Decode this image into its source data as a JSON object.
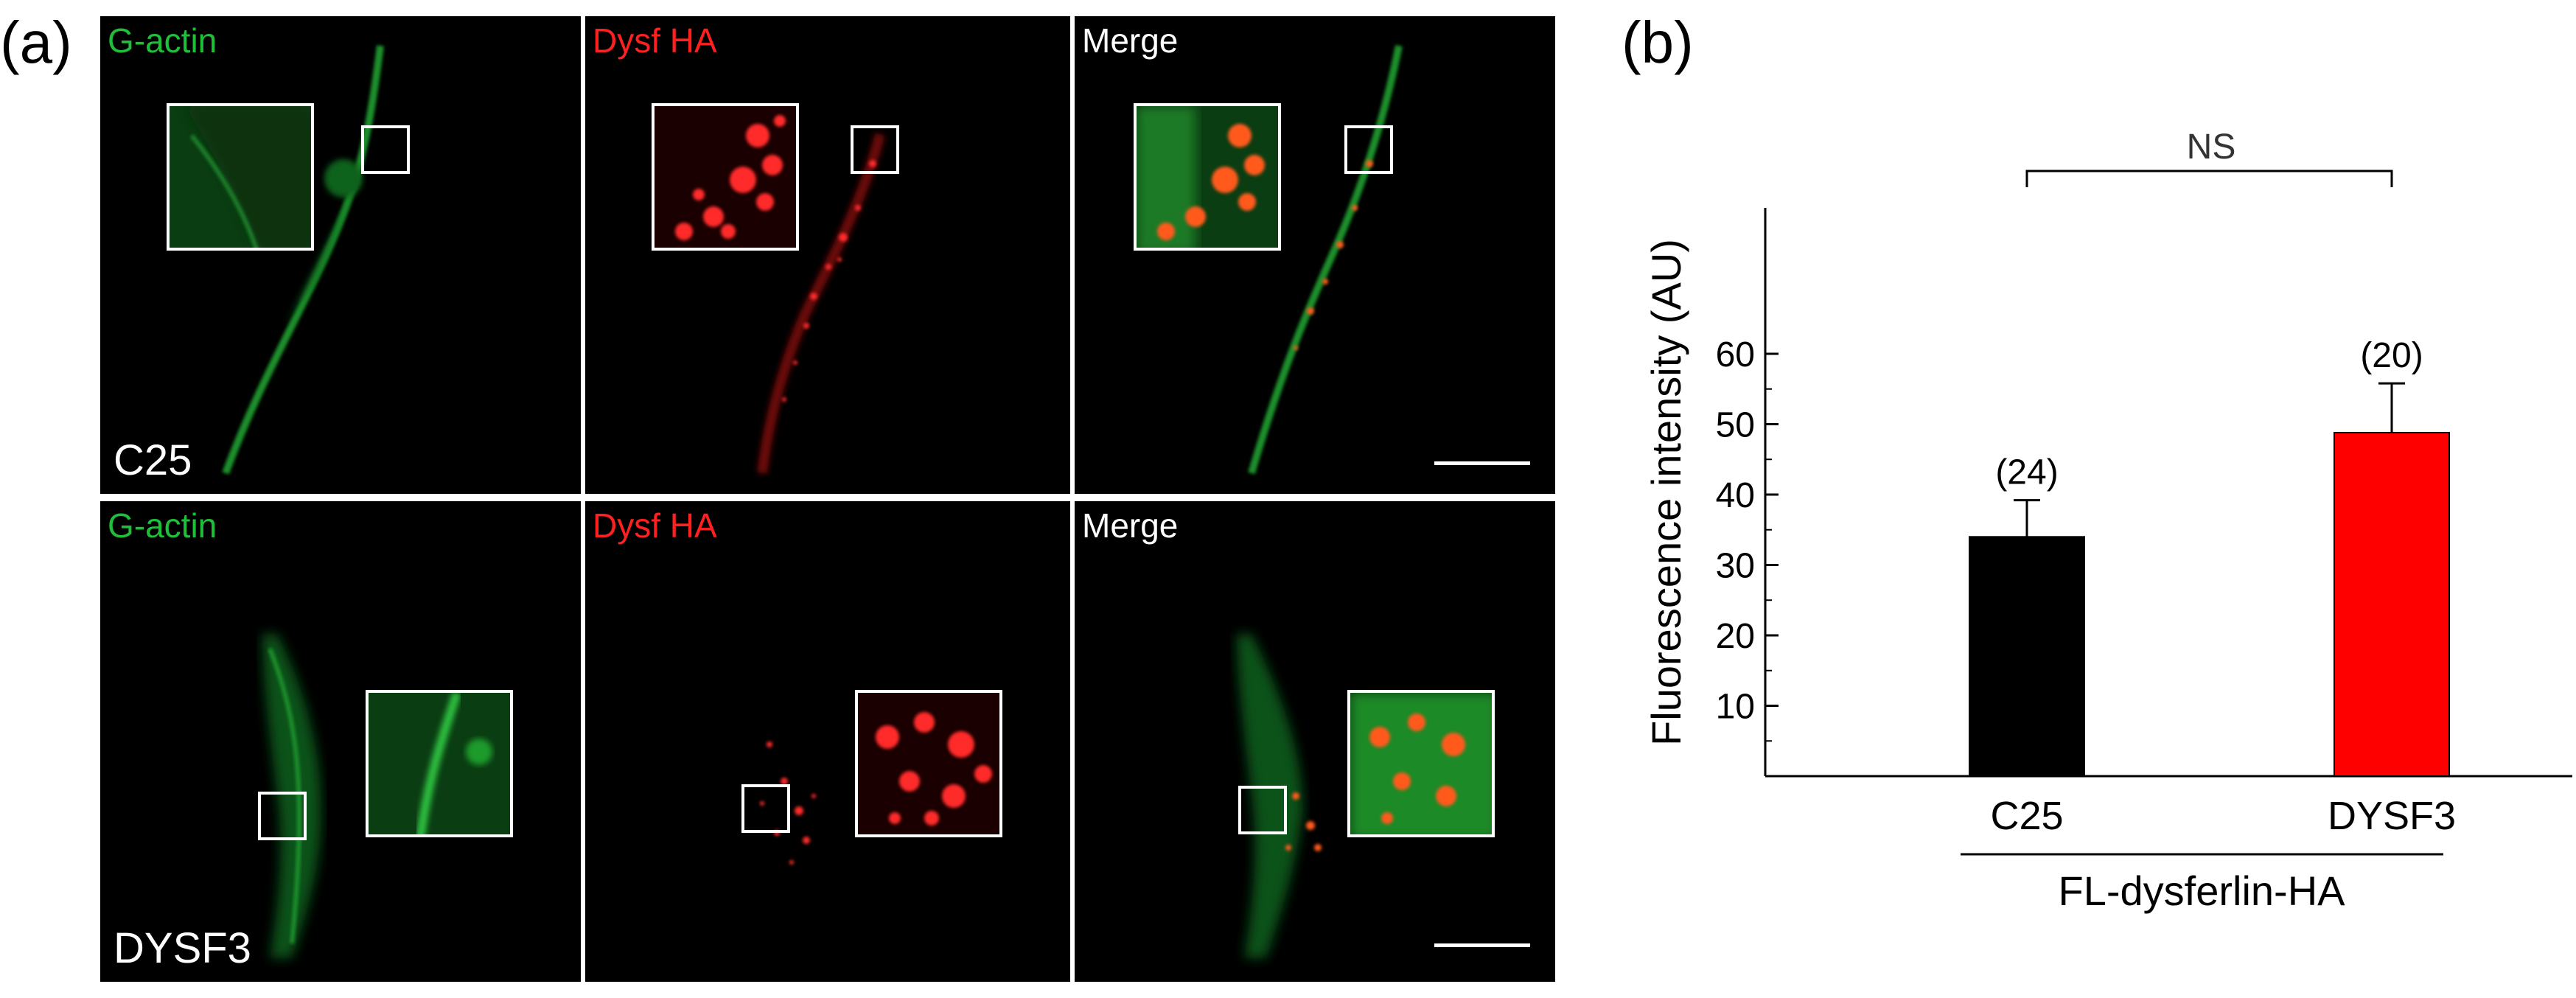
{
  "panels": {
    "a_label": "(a)",
    "b_label": "(b)"
  },
  "micrographs": {
    "channels": [
      "G-actin",
      "Dysf HA",
      "Merge"
    ],
    "rows": [
      "C25",
      "DYSF3"
    ],
    "colors": {
      "green": "#1fbf3a",
      "red": "#ff2020",
      "white": "#ffffff",
      "background": "#000000"
    }
  },
  "chart_data": {
    "type": "bar",
    "categories": [
      "C25",
      "DYSF3"
    ],
    "values": [
      34,
      48.8
    ],
    "errors": [
      5.2,
      7.0
    ],
    "n_labels": [
      "(24)",
      "(20)"
    ],
    "colors": [
      "#000000",
      "#ff0000"
    ],
    "ylabel": "Fluorescence intensity (AU)",
    "xlabel": "",
    "group_label": "FL-dysferlin-HA",
    "significance": "NS",
    "ylim": [
      0,
      60
    ],
    "yticks": [
      10,
      20,
      30,
      40,
      50,
      60
    ],
    "grid": false
  }
}
